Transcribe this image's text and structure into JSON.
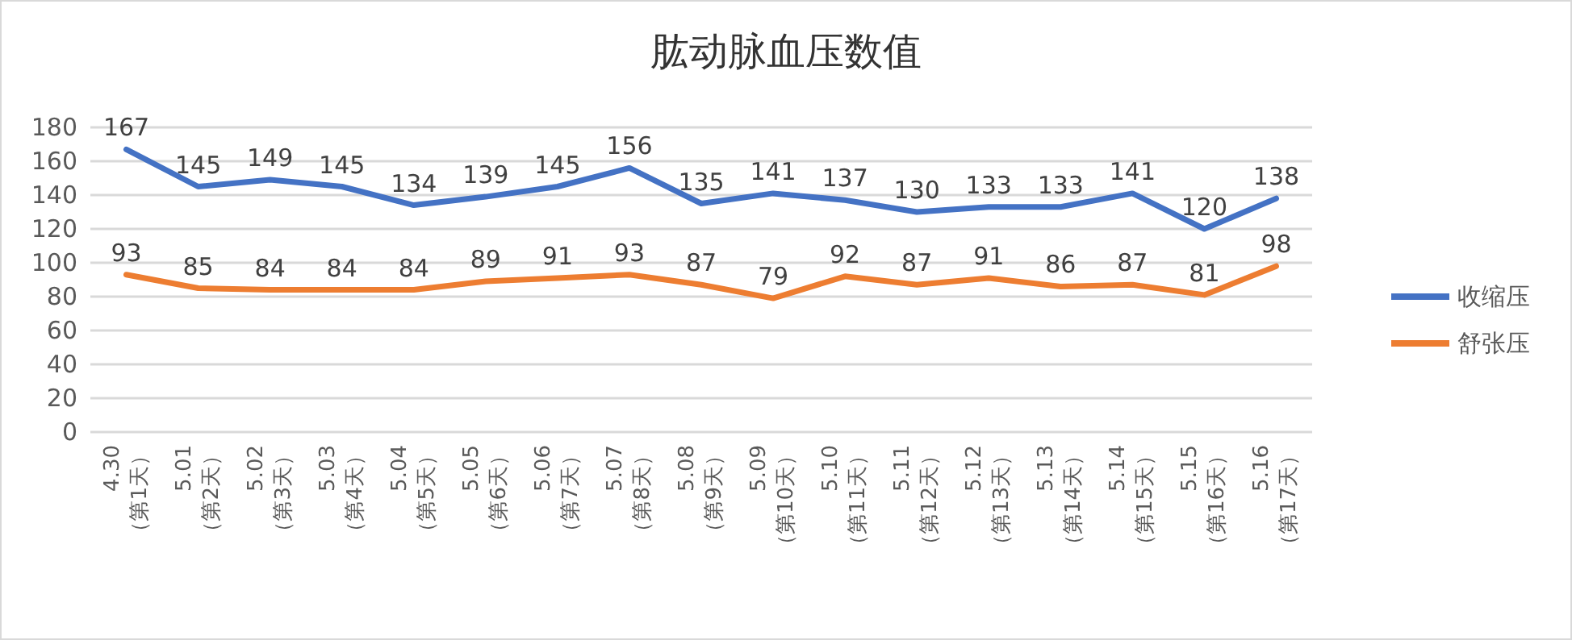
{
  "chart_data": {
    "type": "line",
    "title": "肱动脉血压数值",
    "categories": [
      "4.30\n（第1天）",
      "5.01\n（第2天）",
      "5.02\n（第3天）",
      "5.03\n（第4天）",
      "5.04\n（第5天）",
      "5.05\n（第6天）",
      "5.06\n（第7天）",
      "5.07\n（第8天）",
      "5.08\n（第9天）",
      "5.09\n（第10天）",
      "5.10\n（第11天）",
      "5.11\n（第12天）",
      "5.12\n（第13天）",
      "5.13\n（第14天）",
      "5.14\n（第15天）",
      "5.15\n（第16天）",
      "5.16\n（第17天）"
    ],
    "series": [
      {
        "name": "收缩压",
        "color": "#4472c4",
        "values": [
          167,
          145,
          149,
          145,
          134,
          139,
          145,
          156,
          135,
          141,
          137,
          130,
          133,
          133,
          141,
          120,
          138
        ]
      },
      {
        "name": "舒张压",
        "color": "#ed7d31",
        "values": [
          93,
          85,
          84,
          84,
          84,
          89,
          91,
          93,
          87,
          79,
          92,
          87,
          91,
          86,
          87,
          81,
          98
        ]
      }
    ],
    "ylim": [
      0,
      180
    ],
    "yticks": [
      0,
      20,
      40,
      60,
      80,
      100,
      120,
      140,
      160,
      180
    ],
    "grid": "y",
    "legend": "right",
    "data_labels": true,
    "marker": "none",
    "line_style": "solid"
  }
}
